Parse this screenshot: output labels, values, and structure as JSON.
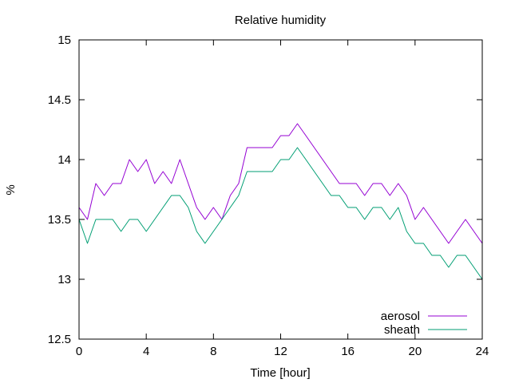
{
  "chart_data": {
    "type": "line",
    "title": "Relative humidity",
    "xlabel": "Time [hour]",
    "ylabel": "%",
    "xlim": [
      0,
      24
    ],
    "ylim": [
      12.5,
      15
    ],
    "xticks": [
      "0",
      "4",
      "8",
      "12",
      "16",
      "20",
      "24"
    ],
    "yticks": [
      "12.5",
      "13",
      "13.5",
      "14",
      "14.5",
      "15"
    ],
    "xtick_values": [
      0,
      4,
      8,
      12,
      16,
      20,
      24
    ],
    "ytick_values": [
      12.5,
      13,
      13.5,
      14,
      14.5,
      15
    ],
    "grid": false,
    "legend_position": "bottom-right",
    "x": [
      0,
      0.5,
      1,
      1.5,
      2,
      2.5,
      3,
      3.5,
      4,
      4.5,
      5,
      5.5,
      6,
      6.5,
      7,
      7.5,
      8,
      8.5,
      9,
      9.5,
      10,
      10.5,
      11,
      11.5,
      12,
      12.5,
      13,
      13.5,
      14,
      14.5,
      15,
      15.5,
      16,
      16.5,
      17,
      17.5,
      18,
      18.5,
      19,
      19.5,
      20,
      20.5,
      21,
      21.5,
      22,
      22.5,
      23,
      23.5,
      24
    ],
    "series": [
      {
        "name": "aerosol",
        "color": "#9400d3",
        "values": [
          13.6,
          13.5,
          13.8,
          13.7,
          13.8,
          13.8,
          14.0,
          13.9,
          14.0,
          13.8,
          13.9,
          13.8,
          14.0,
          13.8,
          13.6,
          13.5,
          13.6,
          13.5,
          13.7,
          13.8,
          14.1,
          14.1,
          14.1,
          14.1,
          14.2,
          14.2,
          14.3,
          14.2,
          14.1,
          14.0,
          13.9,
          13.8,
          13.8,
          13.8,
          13.7,
          13.8,
          13.8,
          13.7,
          13.8,
          13.7,
          13.5,
          13.6,
          13.5,
          13.4,
          13.3,
          13.4,
          13.5,
          13.4,
          13.3
        ]
      },
      {
        "name": "sheath",
        "color": "#009e73",
        "values": [
          13.5,
          13.3,
          13.5,
          13.5,
          13.5,
          13.4,
          13.5,
          13.5,
          13.4,
          13.5,
          13.6,
          13.7,
          13.7,
          13.6,
          13.4,
          13.3,
          13.4,
          13.5,
          13.6,
          13.7,
          13.9,
          13.9,
          13.9,
          13.9,
          14.0,
          14.0,
          14.1,
          14.0,
          13.9,
          13.8,
          13.7,
          13.7,
          13.6,
          13.6,
          13.5,
          13.6,
          13.6,
          13.5,
          13.6,
          13.4,
          13.3,
          13.3,
          13.2,
          13.2,
          13.1,
          13.2,
          13.2,
          13.1,
          13.0
        ]
      }
    ]
  }
}
